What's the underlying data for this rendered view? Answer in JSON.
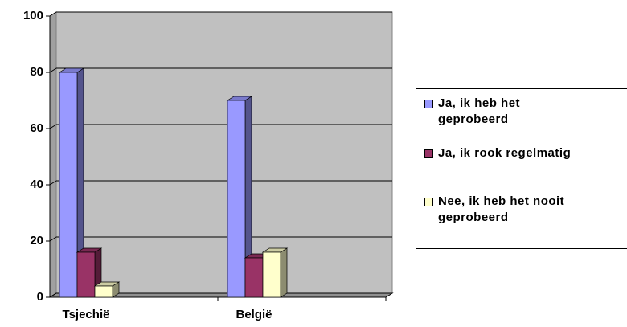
{
  "chart_data": {
    "type": "bar3d",
    "categories": [
      "Tsjechië",
      "België"
    ],
    "series": [
      {
        "name": "Ja, ik heb het geprobeerd",
        "color": "#9999ff",
        "values": [
          80,
          70
        ]
      },
      {
        "name": "Ja, ik rook regelmatig",
        "color": "#993366",
        "values": [
          16,
          14
        ]
      },
      {
        "name": "Nee, ik heb het nooit geprobeerd",
        "color": "#ffffcc",
        "values": [
          4,
          16
        ]
      }
    ],
    "ylim": [
      0,
      100
    ],
    "yticks": [
      0,
      20,
      40,
      60,
      80,
      100
    ],
    "grid": true,
    "legend": "right"
  }
}
